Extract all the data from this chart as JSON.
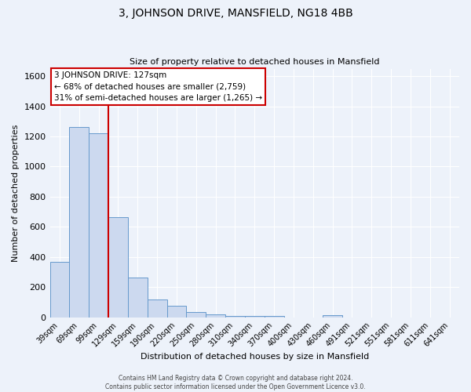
{
  "title": "3, JOHNSON DRIVE, MANSFIELD, NG18 4BB",
  "subtitle": "Size of property relative to detached houses in Mansfield",
  "xlabel": "Distribution of detached houses by size in Mansfield",
  "ylabel": "Number of detached properties",
  "bar_labels": [
    "39sqm",
    "69sqm",
    "99sqm",
    "129sqm",
    "159sqm",
    "190sqm",
    "220sqm",
    "250sqm",
    "280sqm",
    "310sqm",
    "340sqm",
    "370sqm",
    "400sqm",
    "430sqm",
    "460sqm",
    "491sqm",
    "521sqm",
    "551sqm",
    "581sqm",
    "611sqm",
    "641sqm"
  ],
  "bar_values": [
    370,
    1265,
    1220,
    665,
    265,
    120,
    75,
    35,
    18,
    8,
    10,
    10,
    0,
    0,
    12,
    0,
    0,
    0,
    0,
    0,
    0
  ],
  "bar_color": "#ccd9ef",
  "bar_edge_color": "#6699cc",
  "annotation_text_line1": "3 JOHNSON DRIVE: 127sqm",
  "annotation_text_line2": "← 68% of detached houses are smaller (2,759)",
  "annotation_text_line3": "31% of semi-detached houses are larger (1,265) →",
  "annotation_box_color": "#ffffff",
  "annotation_box_edge": "#cc0000",
  "red_line_color": "#cc0000",
  "ylim": [
    0,
    1650
  ],
  "yticks": [
    0,
    200,
    400,
    600,
    800,
    1000,
    1200,
    1400,
    1600
  ],
  "footer_line1": "Contains HM Land Registry data © Crown copyright and database right 2024.",
  "footer_line2": "Contains public sector information licensed under the Open Government Licence v3.0.",
  "bg_color": "#edf2fa",
  "grid_color": "#ffffff",
  "title_fontsize": 10,
  "subtitle_fontsize": 8,
  "xlabel_fontsize": 8,
  "ylabel_fontsize": 8,
  "tick_fontsize": 7,
  "footer_fontsize": 5.5
}
